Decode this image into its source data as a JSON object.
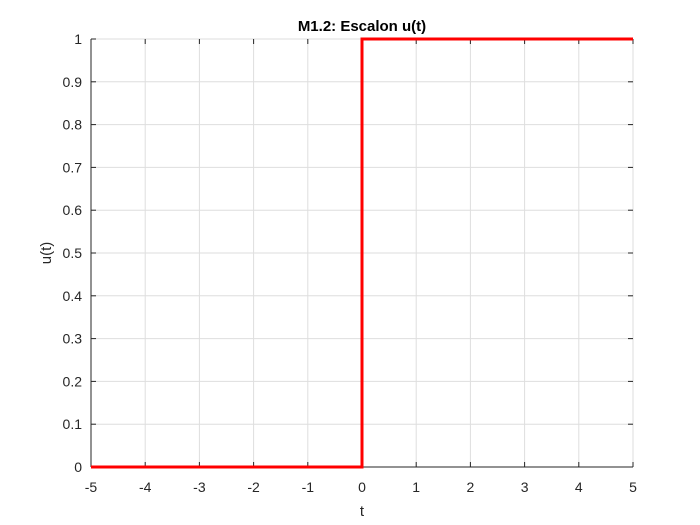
{
  "chart_data": {
    "type": "line",
    "title": "M1.2: Escalon u(t)",
    "xlabel": "t",
    "ylabel": "u(t)",
    "xlim": [
      -5,
      5
    ],
    "ylim": [
      0,
      1
    ],
    "xticks": [
      -5,
      -4,
      -3,
      -2,
      -1,
      0,
      1,
      2,
      3,
      4,
      5
    ],
    "xtick_labels": [
      "-5",
      "-4",
      "-3",
      "-2",
      "-1",
      "0",
      "1",
      "2",
      "3",
      "4",
      "5"
    ],
    "yticks": [
      0,
      0.1,
      0.2,
      0.3,
      0.4,
      0.5,
      0.6,
      0.7,
      0.8,
      0.9,
      1
    ],
    "ytick_labels": [
      "0",
      "0.1",
      "0.2",
      "0.3",
      "0.4",
      "0.5",
      "0.6",
      "0.7",
      "0.8",
      "0.9",
      "1"
    ],
    "grid": true,
    "series": [
      {
        "color": "#ff0000",
        "x": [
          -5,
          0,
          0,
          5
        ],
        "y": [
          0,
          0,
          1,
          1
        ]
      }
    ]
  }
}
